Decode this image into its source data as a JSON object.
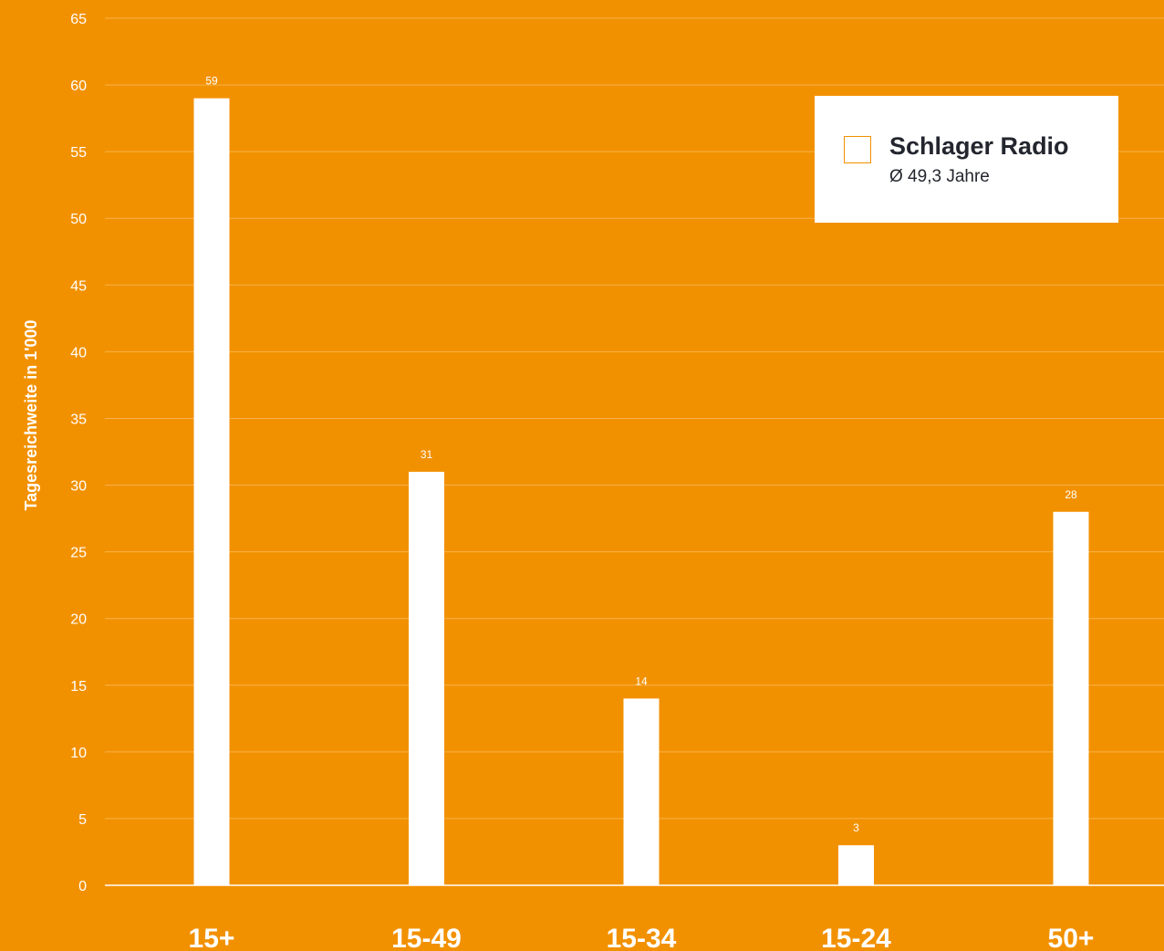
{
  "colors": {
    "background": "#f29100",
    "bar": "#ffffff",
    "grid": "#f6b24d",
    "legend_text": "#23262e"
  },
  "legend": {
    "placement": "top-right",
    "name": "Schlager Radio",
    "subtitle": "Ø 49,3 Jahre"
  },
  "chart_data": {
    "type": "bar",
    "title": "",
    "xlabel": "",
    "ylabel": "Tagesreichweite in 1'000",
    "categories": [
      "15+",
      "15-49",
      "15-34",
      "15-24",
      "50+"
    ],
    "series": [
      {
        "name": "Schlager Radio",
        "values": [
          59,
          31,
          14,
          3,
          28
        ]
      }
    ],
    "ylim": [
      0,
      65
    ],
    "yticks": [
      0,
      5,
      10,
      15,
      20,
      25,
      30,
      35,
      40,
      45,
      50,
      55,
      60,
      65
    ],
    "grid": true,
    "data_labels": true
  }
}
